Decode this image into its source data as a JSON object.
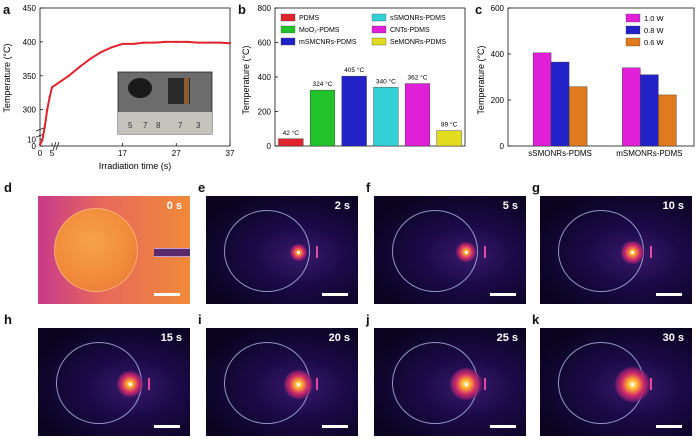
{
  "panel_letters": {
    "a": "a",
    "b": "b",
    "c": "c",
    "d": "d",
    "e": "e",
    "f": "f",
    "g": "g",
    "h": "h",
    "i": "i",
    "j": "j",
    "k": "k"
  },
  "chart_data": [
    {
      "type": "line",
      "panel": "a",
      "xlabel": "Irradiation time (s)",
      "ylabel": "Temperature (°C)",
      "x_ticks": [
        "0",
        "5",
        "17",
        "27",
        "37"
      ],
      "y_ticks": [
        "0",
        "10",
        "300",
        "350",
        "400",
        "450"
      ],
      "ylim_lower": [
        0,
        15
      ],
      "ylim_upper": [
        270,
        450
      ],
      "xlim": [
        0,
        37
      ],
      "axis_break": true,
      "series": [
        {
          "color": "#e0242e",
          "x": [
            0,
            1,
            2,
            3,
            4,
            5,
            7,
            9,
            11,
            13,
            15,
            17,
            19,
            21,
            23,
            25,
            27,
            29,
            31,
            33,
            35,
            37
          ],
          "y": [
            2,
            9,
            275,
            300,
            318,
            333,
            350,
            363,
            375,
            385,
            392,
            397,
            397,
            399,
            399,
            400,
            400,
            400,
            399,
            399,
            399,
            398
          ]
        }
      ]
    },
    {
      "type": "bar",
      "panel": "b",
      "ylabel": "Temperature (°C)",
      "ylim": [
        0,
        800
      ],
      "y_ticks": [
        "0",
        "200",
        "400",
        "600",
        "800"
      ],
      "categories": [
        "PDMS",
        "MoO2-PDMS",
        "mSMCNRs-PDMS",
        "sSMONRs-PDMS",
        "CNTs-PDMS",
        "SeMONRs-PDMS"
      ],
      "legend": [
        "PDMS",
        "MoO₂-PDMS",
        "mSMCNRs-PDMS",
        "sSMONRs-PDMS",
        "CNTs-PDMS",
        "SeMONRs-PDMS"
      ],
      "values": [
        42,
        324,
        405,
        340,
        362,
        89
      ],
      "data_labels": [
        "42 °C",
        "324 °C",
        "405 °C",
        "340 °C",
        "362 °C",
        "89 °C"
      ],
      "colors": [
        "#e0242e",
        "#22c22a",
        "#2222c8",
        "#33d0d8",
        "#e020d8",
        "#e2dc1e"
      ]
    },
    {
      "type": "bar",
      "panel": "c",
      "ylabel": "Temperature (°C)",
      "ylim": [
        0,
        600
      ],
      "y_ticks": [
        "0",
        "200",
        "400",
        "600"
      ],
      "categories": [
        "sSMONRs-PDMS",
        "mSMONRs-PDMS"
      ],
      "series": [
        {
          "name": "1.0 W",
          "color": "#e020d8",
          "values": [
            405,
            340
          ]
        },
        {
          "name": "0.8 W",
          "color": "#2222c8",
          "values": [
            365,
            310
          ]
        },
        {
          "name": "0.6 W",
          "color": "#e07a1e",
          "values": [
            258,
            222
          ]
        }
      ]
    }
  ],
  "inset_labels": [
    "5",
    "7",
    "8",
    "7",
    "3"
  ],
  "thermal_frames": [
    {
      "letter": "d",
      "time": "0 s"
    },
    {
      "letter": "e",
      "time": "2 s"
    },
    {
      "letter": "f",
      "time": "5 s"
    },
    {
      "letter": "g",
      "time": "10 s"
    },
    {
      "letter": "h",
      "time": "15 s"
    },
    {
      "letter": "i",
      "time": "20 s"
    },
    {
      "letter": "j",
      "time": "25 s"
    },
    {
      "letter": "k",
      "time": "30 s"
    }
  ]
}
